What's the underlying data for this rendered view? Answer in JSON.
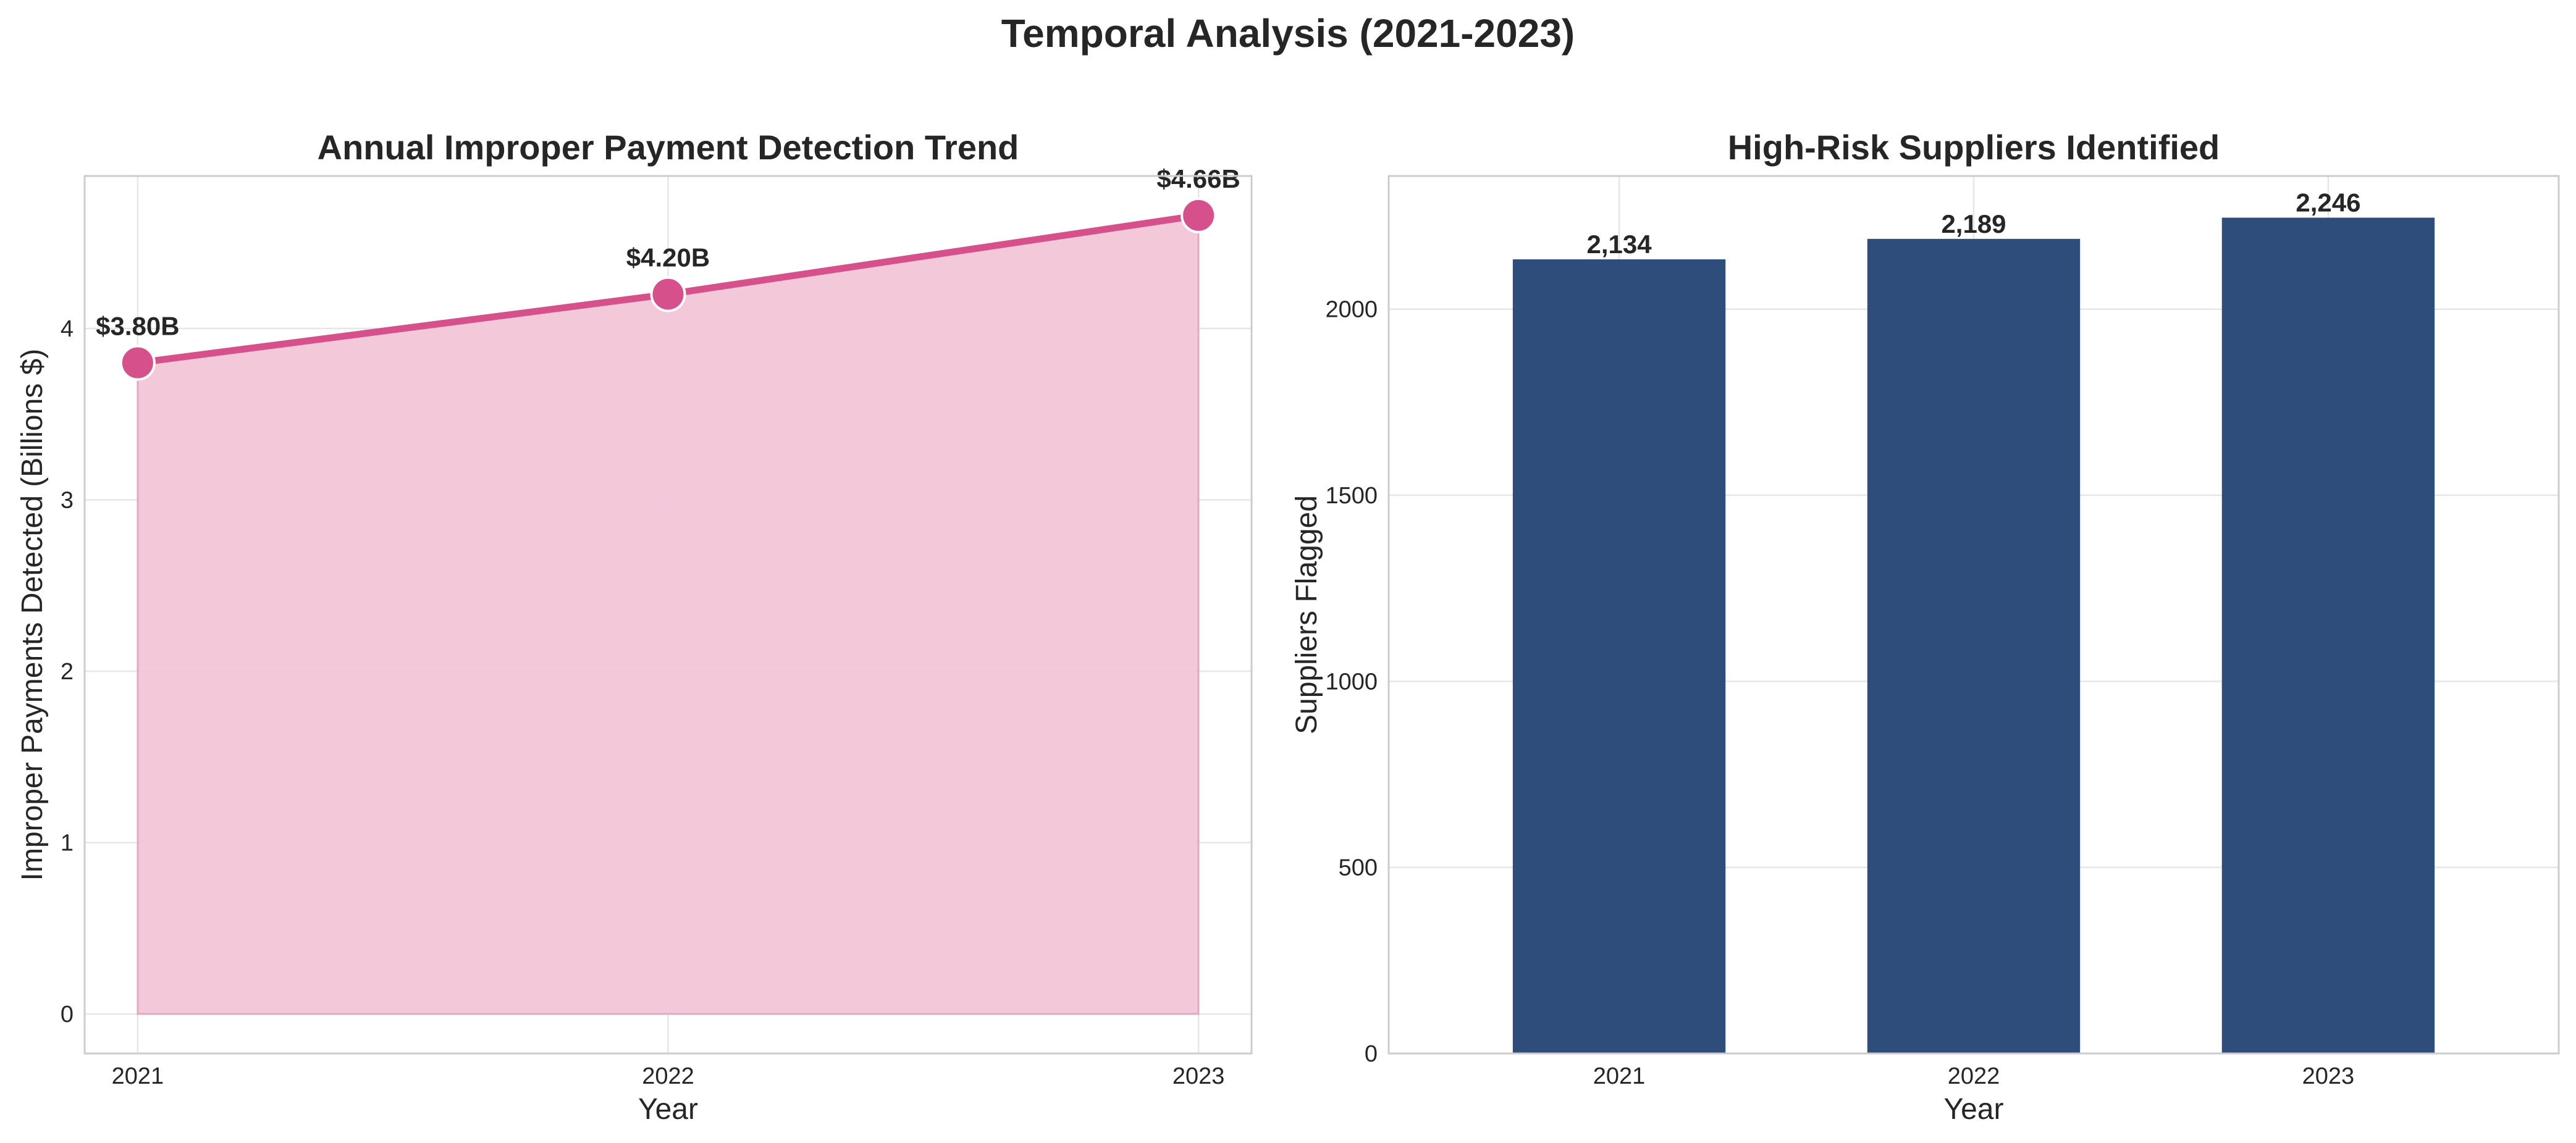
{
  "figure": {
    "title": "Temporal Analysis (2021-2023)"
  },
  "chart_data": [
    {
      "type": "area",
      "title": "Annual Improper Payment Detection Trend",
      "xlabel": "Year",
      "ylabel": "Improper Payments Detected (Billions $)",
      "categories": [
        "2021",
        "2022",
        "2023"
      ],
      "values": [
        3.8,
        4.2,
        4.66
      ],
      "data_labels": [
        "$3.80B",
        "$4.20B",
        "$4.66B"
      ],
      "yticks": [
        0,
        1,
        2,
        3,
        4
      ],
      "ylim": [
        -0.23,
        4.89
      ],
      "grid": true,
      "colors": {
        "line": "#d6518b",
        "fill": "#f2c6d8"
      }
    },
    {
      "type": "bar",
      "title": "High-Risk Suppliers Identified",
      "xlabel": "Year",
      "ylabel": "Suppliers Flagged",
      "categories": [
        "2021",
        "2022",
        "2023"
      ],
      "values": [
        2134,
        2189,
        2246
      ],
      "data_labels": [
        "2,134",
        "2,189",
        "2,246"
      ],
      "yticks": [
        0,
        500,
        1000,
        1500,
        2000
      ],
      "ylim": [
        0,
        2358
      ],
      "grid": true,
      "colors": {
        "bar": "#2e4d7b"
      }
    }
  ]
}
